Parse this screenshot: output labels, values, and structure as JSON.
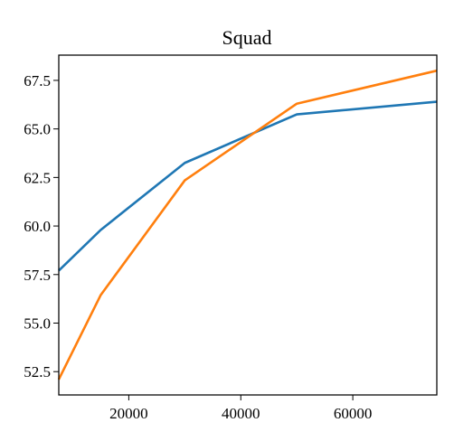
{
  "chart_data": {
    "type": "line",
    "title": "Squad",
    "xlabel": "",
    "ylabel": "",
    "xlim": [
      7500,
      75000
    ],
    "ylim": [
      51.3,
      68.8
    ],
    "x_ticks": [
      20000,
      40000,
      60000
    ],
    "x_tick_labels": [
      "20000",
      "40000",
      "60000"
    ],
    "y_ticks": [
      52.5,
      55.0,
      57.5,
      60.0,
      62.5,
      65.0,
      67.5
    ],
    "y_tick_labels": [
      "52.5",
      "55.0",
      "57.5",
      "60.0",
      "62.5",
      "65.0",
      "67.5"
    ],
    "grid": false,
    "legend": null,
    "series": [
      {
        "color": "#1f77b4",
        "x": [
          7500,
          15000,
          30000,
          50000,
          75000
        ],
        "y": [
          57.7,
          59.8,
          63.25,
          65.75,
          66.4
        ]
      },
      {
        "color": "#ff7f0e",
        "x": [
          7500,
          15000,
          30000,
          50000,
          75000
        ],
        "y": [
          52.1,
          56.45,
          62.35,
          66.3,
          68.0
        ]
      }
    ]
  }
}
